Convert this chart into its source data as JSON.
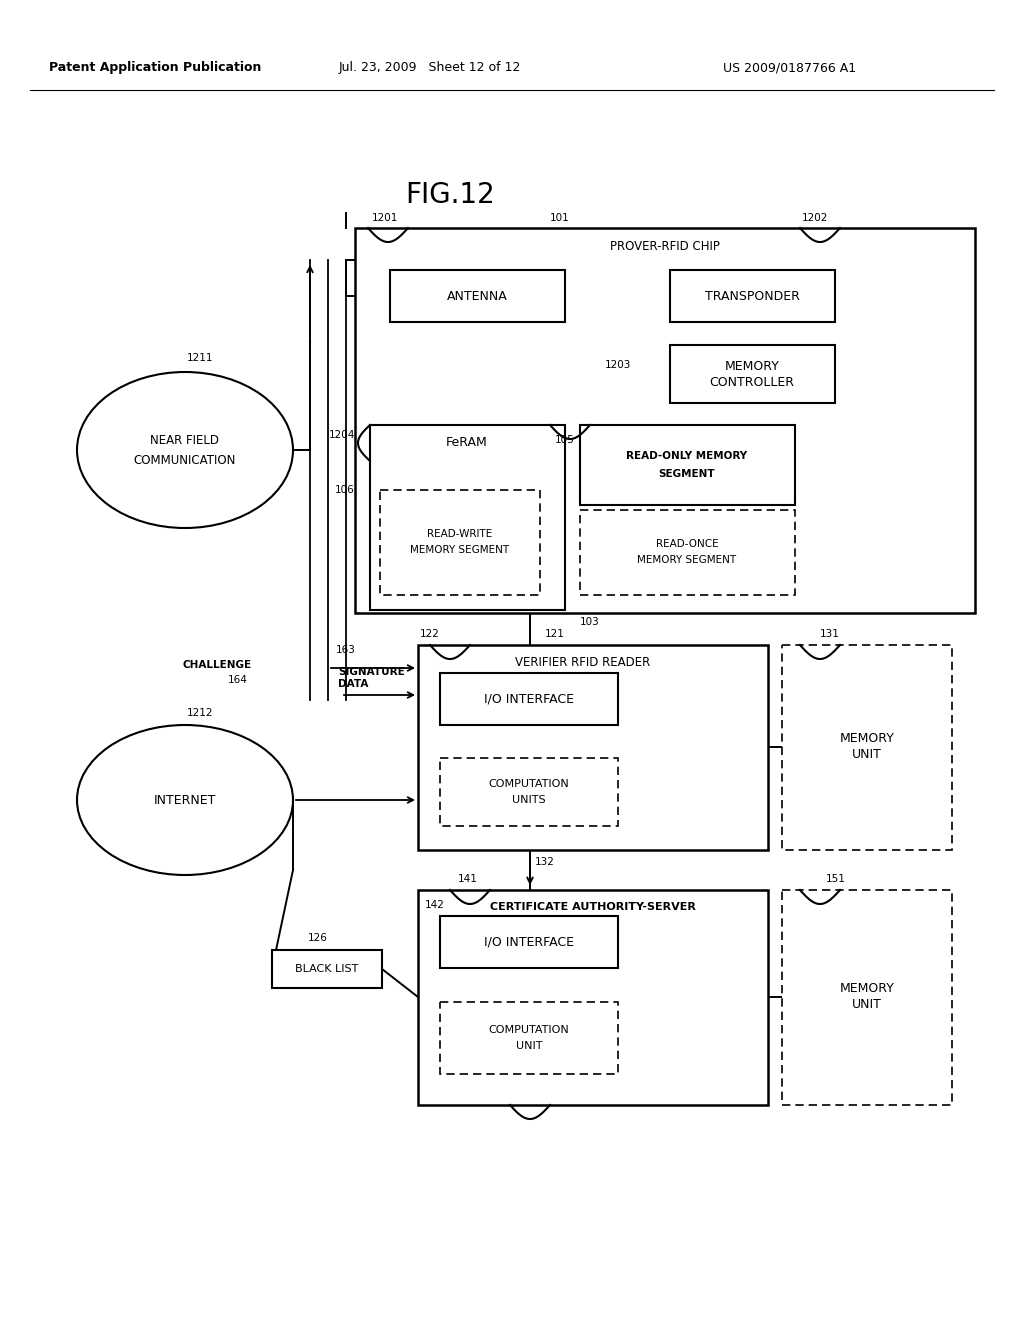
{
  "header_left": "Patent Application Publication",
  "header_mid": "Jul. 23, 2009   Sheet 12 of 12",
  "header_right": "US 2009/0187766 A1",
  "title": "FIG.12",
  "background": "#ffffff"
}
